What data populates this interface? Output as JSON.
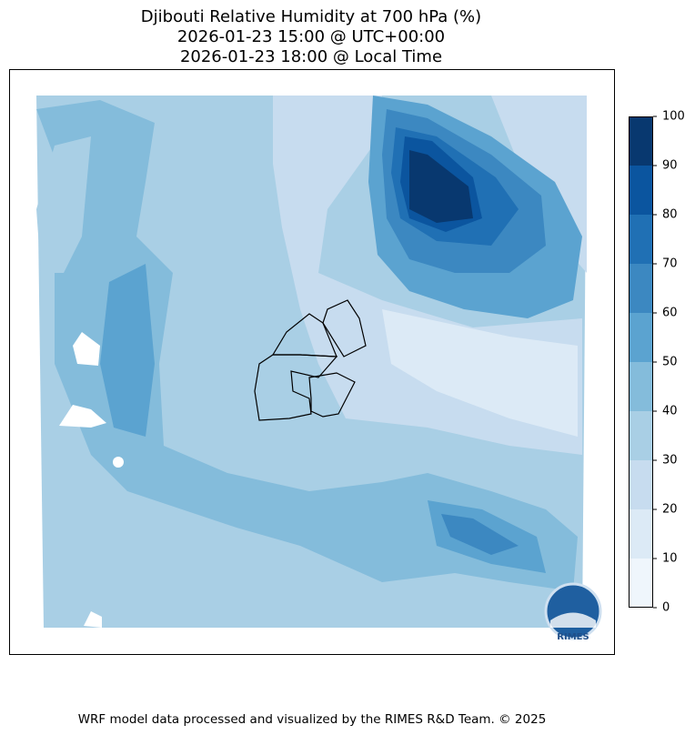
{
  "title": [
    "Djibouti Relative Humidity at 700 hPa (%)",
    "2026-01-23 15:00 @ UTC+00:00",
    "2026-01-23 18:00 @ Local Time"
  ],
  "colorbar": {
    "lim": [
      0,
      100
    ],
    "ticks": [
      0,
      10,
      20,
      30,
      40,
      50,
      60,
      70,
      80,
      90,
      100
    ],
    "colors": [
      "#eff6fc",
      "#dceaf6",
      "#c7dcef",
      "#a9cfe5",
      "#84bcdb",
      "#5ba3d0",
      "#3c88c1",
      "#2070b4",
      "#0b559f",
      "#08386f"
    ]
  },
  "logo_text": "RIMES",
  "footer": "WRF model data processed and visualized by the RIMES R&D Team. © 2025"
}
